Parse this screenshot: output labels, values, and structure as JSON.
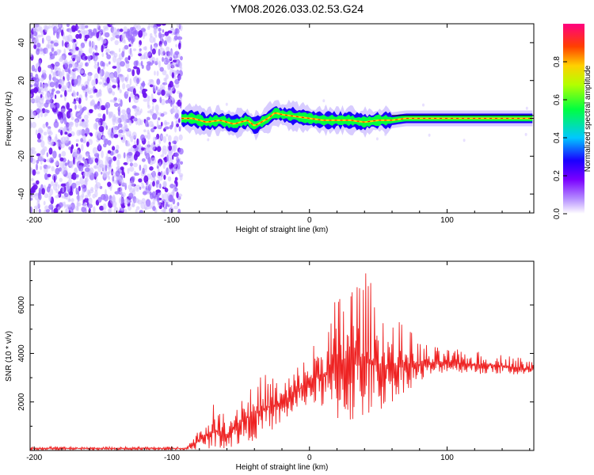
{
  "title": "YM08.2026.033.02.53.G24",
  "chart_data": [
    {
      "type": "heatmap",
      "name": "spectrogram",
      "title": "YM08.2026.033.02.53.G24",
      "xlabel": "Height of straight line (km)",
      "ylabel": "Frequency (Hz)",
      "xlim": [
        -203,
        163
      ],
      "ylim": [
        -50,
        50
      ],
      "xticks": [
        -200,
        -100,
        0,
        100
      ],
      "yticks": [
        40,
        20,
        0,
        -20,
        -40
      ],
      "noise_region_x": [
        -200,
        -93
      ],
      "signal_start_x": -93,
      "signal_track": {
        "x": [
          -93,
          -85,
          -75,
          -65,
          -55,
          -45,
          -40,
          -30,
          -25,
          -20,
          -10,
          0,
          10,
          20,
          30,
          40,
          50,
          60,
          70,
          80,
          100,
          120,
          140,
          160
        ],
        "y": [
          0,
          0,
          -2,
          -1,
          -3,
          -1,
          -4,
          0,
          3,
          2,
          1,
          0,
          -1,
          -1,
          -1,
          -2,
          -1,
          -1,
          0,
          0,
          0,
          0,
          0,
          0
        ]
      },
      "colorbar": {
        "label": "Normalized spectral amplitude",
        "range": [
          0,
          1
        ],
        "ticks": [
          "0.0",
          "0.2",
          "0.4",
          "0.6",
          "0.8"
        ]
      }
    },
    {
      "type": "line",
      "name": "snr",
      "xlabel": "Height of straight line (km)",
      "ylabel": "SNR (10 * v/v)",
      "xlim": [
        -203,
        163
      ],
      "ylim": [
        0,
        7800
      ],
      "xticks": [
        -200,
        -100,
        0,
        100
      ],
      "yticks": [
        2000,
        4000,
        6000
      ],
      "color": "#ee2222",
      "envelope": {
        "x": [
          -200,
          -90,
          -80,
          -70,
          -60,
          -50,
          -40,
          -30,
          -20,
          -10,
          0,
          10,
          20,
          30,
          40,
          50,
          60,
          70,
          80,
          90,
          100,
          120,
          140,
          160
        ],
        "upper": [
          200,
          200,
          1000,
          1900,
          1500,
          2700,
          2900,
          3300,
          3000,
          3500,
          4200,
          5200,
          6500,
          7700,
          7500,
          6500,
          5500,
          5200,
          4600,
          4300,
          4200,
          4100,
          4000,
          3800
        ],
        "lower": [
          0,
          0,
          0,
          0,
          0,
          50,
          300,
          600,
          1000,
          1500,
          1800,
          1500,
          900,
          700,
          900,
          1200,
          1800,
          2300,
          2700,
          3000,
          3200,
          3100,
          3100,
          3000
        ]
      }
    }
  ]
}
